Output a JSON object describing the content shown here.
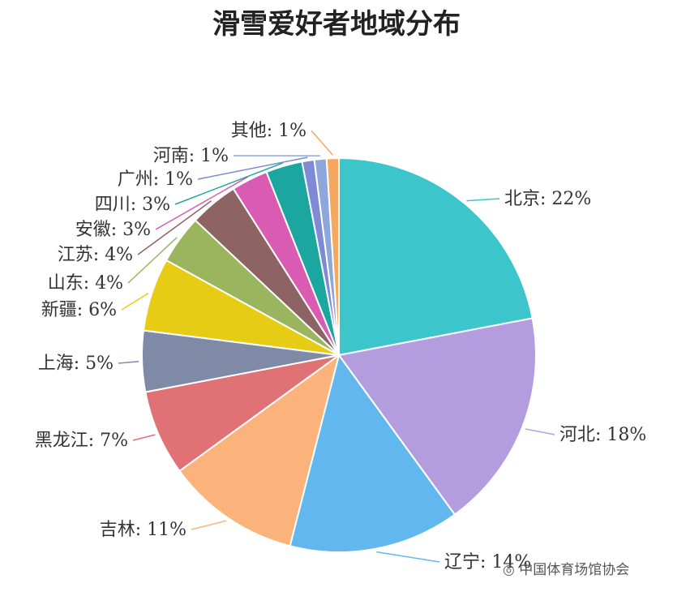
{
  "watermark": "中国体育场馆协会",
  "chart_data": {
    "type": "pie",
    "title": "滑雪爱好者地域分布",
    "slices": [
      {
        "label": "北京",
        "value": 22,
        "display": "北京: 22%",
        "color": "#3cc6cc"
      },
      {
        "label": "河北",
        "value": 18,
        "display": "河北: 18%",
        "color": "#b39ddf"
      },
      {
        "label": "辽宁",
        "value": 14,
        "display": "辽宁: 14%",
        "color": "#62b7ee"
      },
      {
        "label": "吉林",
        "value": 11,
        "display": "吉林: 11%",
        "color": "#fbb37b"
      },
      {
        "label": "黑龙江",
        "value": 7,
        "display": "黑龙江: 7%",
        "color": "#e07275"
      },
      {
        "label": "上海",
        "value": 5,
        "display": "上海: 5%",
        "color": "#7f8aa6"
      },
      {
        "label": "新疆",
        "value": 6,
        "display": "新疆: 6%",
        "color": "#e7cc16"
      },
      {
        "label": "山东",
        "value": 4,
        "display": "山东: 4%",
        "color": "#9ab55d"
      },
      {
        "label": "江苏",
        "value": 4,
        "display": "江苏: 4%",
        "color": "#8d6364"
      },
      {
        "label": "安徽",
        "value": 3,
        "display": "安徽: 3%",
        "color": "#da5bb2"
      },
      {
        "label": "四川",
        "value": 3,
        "display": "四川: 3%",
        "color": "#1ba6a0"
      },
      {
        "label": "广州",
        "value": 1,
        "display": "广州: 1%",
        "color": "#7e8ad6"
      },
      {
        "label": "河南",
        "value": 1,
        "display": "河南: 1%",
        "color": "#8da6dc"
      },
      {
        "label": "其他",
        "value": 1,
        "display": "其他: 1%",
        "color": "#f4a860"
      }
    ]
  }
}
